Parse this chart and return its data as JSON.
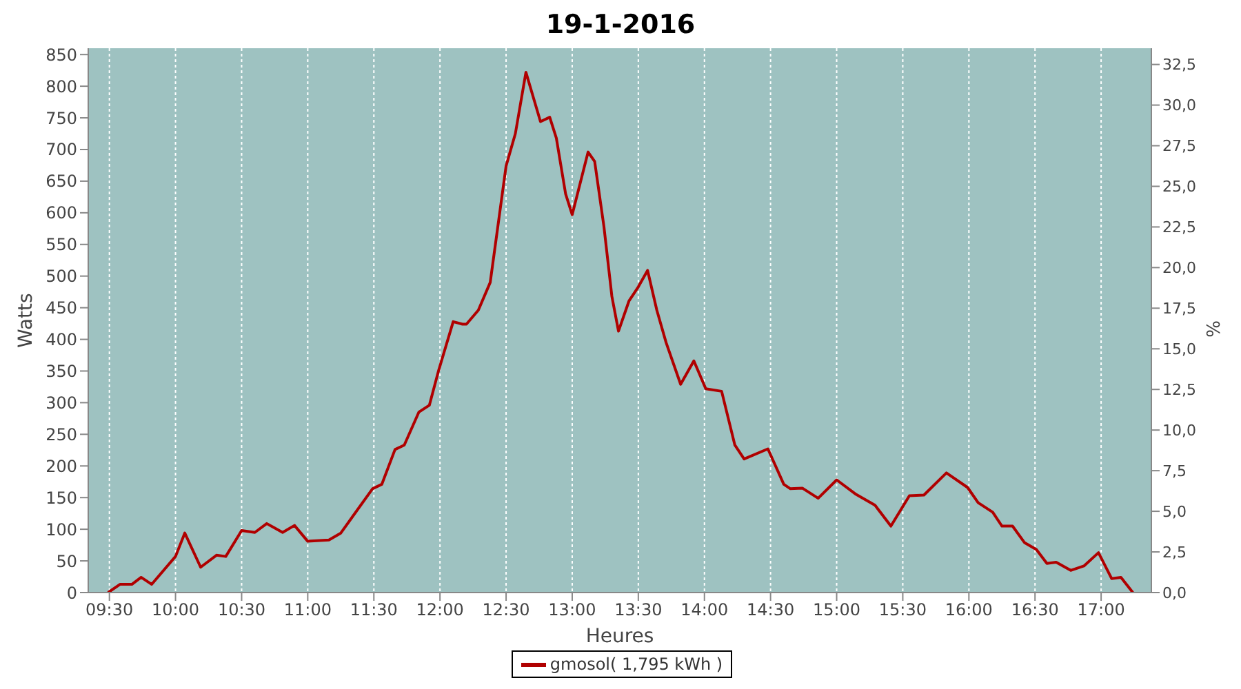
{
  "chart_data": {
    "type": "line",
    "title": "19-1-2016",
    "xlabel": "Heures",
    "ylabel": "Watts",
    "y2label": "%",
    "x": [
      9.49,
      9.58,
      9.67,
      9.74,
      9.82,
      10.0,
      10.07,
      10.19,
      10.31,
      10.38,
      10.5,
      10.6,
      10.69,
      10.81,
      10.9,
      11.0,
      11.16,
      11.25,
      11.49,
      11.56,
      11.66,
      11.73,
      11.84,
      11.92,
      11.99,
      12.1,
      12.17,
      12.2,
      12.29,
      12.38,
      12.5,
      12.57,
      12.65,
      12.76,
      12.83,
      12.88,
      12.95,
      13.0,
      13.12,
      13.17,
      13.24,
      13.3,
      13.35,
      13.43,
      13.5,
      13.57,
      13.64,
      13.71,
      13.82,
      13.92,
      14.01,
      14.13,
      14.23,
      14.3,
      14.48,
      14.6,
      14.65,
      14.74,
      14.86,
      15.0,
      15.14,
      15.29,
      15.41,
      15.55,
      15.66,
      15.83,
      15.99,
      16.07,
      16.18,
      16.25,
      16.33,
      16.42,
      16.51,
      16.59,
      16.66,
      16.77,
      16.87,
      16.98,
      17.08,
      17.15,
      17.24
    ],
    "series": [
      {
        "name": "gmosol( 1,795 kWh )",
        "color": "#b00000",
        "values": [
          0,
          13,
          13,
          24,
          13,
          57,
          94,
          40,
          59,
          57,
          98,
          95,
          109,
          95,
          106,
          81,
          83,
          94,
          164,
          171,
          226,
          233,
          285,
          296,
          351,
          428,
          424,
          424,
          446,
          490,
          674,
          725,
          822,
          744,
          751,
          718,
          630,
          597,
          696,
          681,
          578,
          468,
          413,
          461,
          483,
          509,
          446,
          395,
          329,
          366,
          322,
          318,
          233,
          211,
          227,
          171,
          164,
          165,
          149,
          178,
          156,
          138,
          105,
          153,
          154,
          189,
          166,
          142,
          127,
          105,
          105,
          79,
          68,
          46,
          48,
          35,
          42,
          63,
          22,
          24,
          0
        ]
      }
    ],
    "xlim": [
      9.34,
      17.38
    ],
    "xticks": [
      {
        "value": 9.5,
        "label": "09:30"
      },
      {
        "value": 10,
        "label": "10:00"
      },
      {
        "value": 10.5,
        "label": "10:30"
      },
      {
        "value": 11,
        "label": "11:00"
      },
      {
        "value": 11.5,
        "label": "11:30"
      },
      {
        "value": 12,
        "label": "12:00"
      },
      {
        "value": 12.5,
        "label": "12:30"
      },
      {
        "value": 13,
        "label": "13:00"
      },
      {
        "value": 13.5,
        "label": "13:30"
      },
      {
        "value": 14,
        "label": "14:00"
      },
      {
        "value": 14.5,
        "label": "14:30"
      },
      {
        "value": 15,
        "label": "15:00"
      },
      {
        "value": 15.5,
        "label": "15:30"
      },
      {
        "value": 16,
        "label": "16:00"
      },
      {
        "value": 16.5,
        "label": "16:30"
      },
      {
        "value": 17,
        "label": "17:00"
      }
    ],
    "ylim": [
      0,
      860
    ],
    "yticks": [
      0,
      50,
      100,
      150,
      200,
      250,
      300,
      350,
      400,
      450,
      500,
      550,
      600,
      650,
      700,
      750,
      800,
      850
    ],
    "y2lim": [
      0,
      33.5
    ],
    "y2ticks": [
      {
        "value": 0,
        "label": "0,0"
      },
      {
        "value": 2.5,
        "label": "2,5"
      },
      {
        "value": 5,
        "label": "5,0"
      },
      {
        "value": 7.5,
        "label": "7,5"
      },
      {
        "value": 10,
        "label": "10,0"
      },
      {
        "value": 12.5,
        "label": "12,5"
      },
      {
        "value": 15,
        "label": "15,0"
      },
      {
        "value": 17.5,
        "label": "17,5"
      },
      {
        "value": 20,
        "label": "20,0"
      },
      {
        "value": 22.5,
        "label": "22,5"
      },
      {
        "value": 25,
        "label": "25,0"
      },
      {
        "value": 27.5,
        "label": "27,5"
      },
      {
        "value": 30,
        "label": "30,0"
      },
      {
        "value": 32.5,
        "label": "32,5"
      }
    ],
    "grid": true,
    "legend": "bottom",
    "marker": "none",
    "line_style": "solid"
  }
}
